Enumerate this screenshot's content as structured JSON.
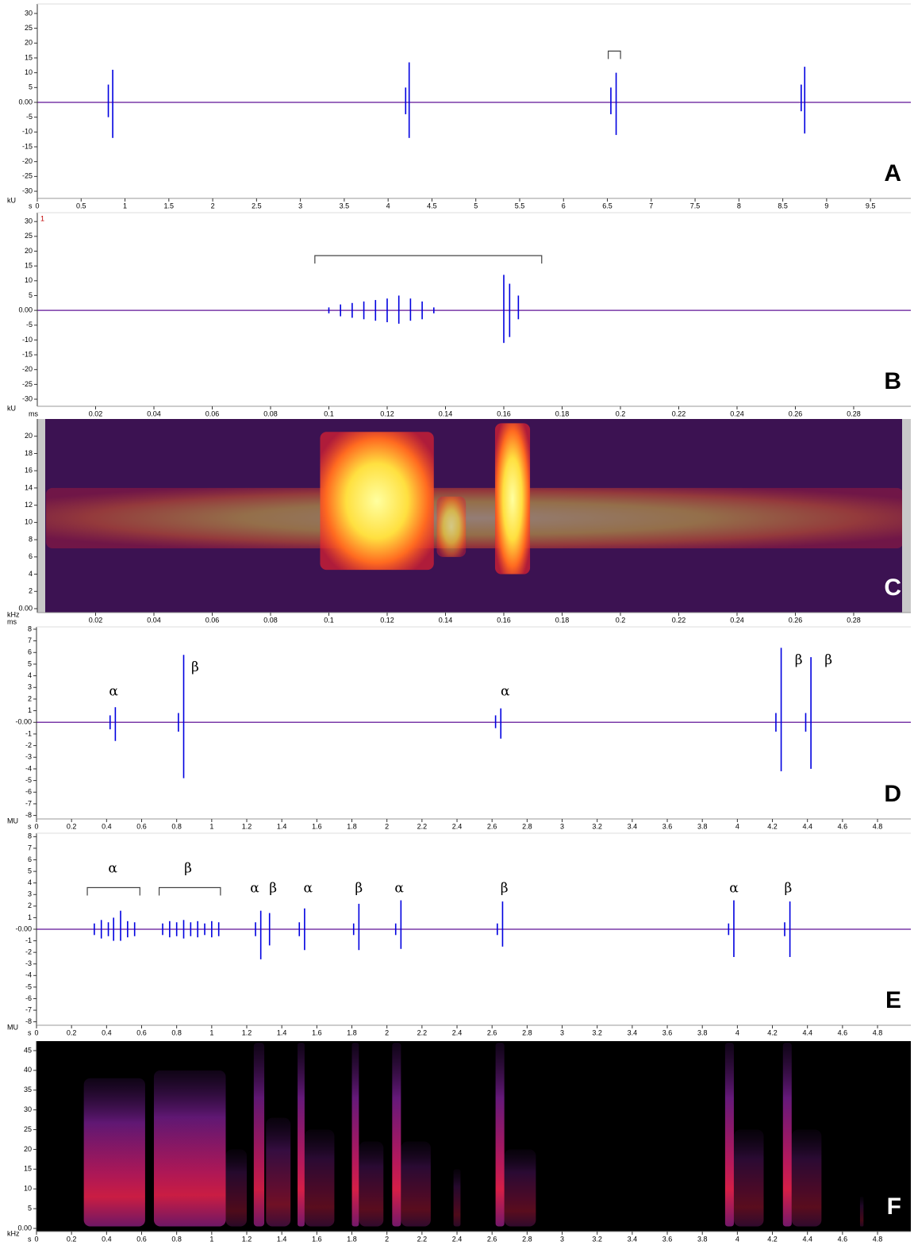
{
  "chart_data": [
    {
      "type": "waveform",
      "label": "A",
      "y_unit": "kU",
      "x_unit": "s",
      "color": "#0000e0",
      "baseline_color": "#7a3aa8",
      "xlim": [
        0,
        9.96
      ],
      "ylim": [
        -32.4,
        33.2
      ],
      "xticks": [
        0,
        0.5,
        1,
        1.5,
        2,
        2.5,
        3,
        3.5,
        4,
        4.5,
        5,
        5.5,
        6,
        6.5,
        7,
        7.5,
        8,
        8.5,
        9,
        9.5
      ],
      "yticks": [
        30,
        25,
        20,
        15,
        10,
        5,
        {
          "value": 0,
          "label": "0.00"
        },
        -5,
        -10,
        -15,
        -20,
        -25,
        -30
      ],
      "x": [
        0.81,
        0.86,
        4.2,
        4.24,
        6.54,
        6.6,
        8.71,
        8.75
      ],
      "max": [
        6,
        11,
        5,
        13.5,
        5,
        10,
        6,
        12
      ],
      "min": [
        -5,
        -12,
        -4,
        -12,
        -4,
        -11,
        -3,
        -10.5
      ],
      "brackets": [
        {
          "x": [
            6.51,
            6.65
          ],
          "y": 17.3
        }
      ]
    },
    {
      "type": "waveform",
      "label": "B",
      "y_unit": "kU",
      "x_unit": "ms",
      "channel_label": "1",
      "color": "#0000e0",
      "baseline_color": "#7a3aa8",
      "xlim": [
        0,
        0.2996
      ],
      "ylim": [
        -32.4,
        33
      ],
      "xticks": [
        0.02,
        0.04,
        0.06,
        0.08,
        0.1,
        0.12,
        0.14,
        0.16,
        0.18,
        0.2,
        0.22,
        0.24,
        0.26,
        0.28
      ],
      "yticks": [
        30,
        25,
        20,
        15,
        10,
        5,
        {
          "value": 0,
          "label": "0.00"
        },
        -5,
        -10,
        -15,
        -20,
        -25,
        -30
      ],
      "x": [
        0.1,
        0.104,
        0.108,
        0.112,
        0.116,
        0.12,
        0.124,
        0.128,
        0.132,
        0.136,
        0.16,
        0.162,
        0.165
      ],
      "max": [
        1,
        2,
        2.5,
        3,
        3.5,
        4,
        5,
        4,
        3,
        1,
        12,
        9,
        5
      ],
      "min": [
        -1,
        -2,
        -2.5,
        -3,
        -3.5,
        -4,
        -4.5,
        -3.5,
        -3,
        -1,
        -11,
        -9,
        -3
      ],
      "brackets": [
        {
          "x": [
            0.0952,
            0.173
          ],
          "y": 18.5
        }
      ]
    },
    {
      "type": "spectrogram",
      "label": "C",
      "y_unit": "kHz",
      "x_unit": "ms",
      "background": "#3c1252",
      "xlim": [
        0,
        0.2996
      ],
      "ylim": [
        -0.46,
        22
      ],
      "xticks": [
        0.02,
        0.04,
        0.06,
        0.08,
        0.1,
        0.12,
        0.14,
        0.16,
        0.18,
        0.2,
        0.22,
        0.24,
        0.26,
        0.28
      ],
      "yticks": [
        {
          "value": 0,
          "label": "0.00"
        },
        2,
        4,
        6,
        8,
        10,
        12,
        14,
        16,
        18,
        20
      ],
      "regions": [
        {
          "x": [
            0.003,
            0.297
          ],
          "y": [
            7,
            14
          ],
          "intensity": 0.45
        },
        {
          "x": [
            0.097,
            0.136
          ],
          "y": [
            4.5,
            20.5
          ],
          "intensity": 1
        },
        {
          "x": [
            0.137,
            0.147
          ],
          "y": [
            6,
            13
          ],
          "intensity": 0.6
        },
        {
          "x": [
            0.157,
            0.169
          ],
          "y": [
            4,
            21.5
          ],
          "intensity": 1
        }
      ]
    },
    {
      "type": "waveform",
      "label": "D",
      "y_unit": "MU",
      "x_unit": "s",
      "color": "#0000e0",
      "baseline_color": "#7a3aa8",
      "xlim": [
        0,
        4.99
      ],
      "ylim": [
        -8.3,
        8.2
      ],
      "xticks": [
        0,
        0.2,
        0.4,
        0.6,
        0.8,
        1,
        1.2,
        1.4,
        1.6,
        1.8,
        2,
        2.2,
        2.4,
        2.6,
        2.8,
        3,
        3.2,
        3.4,
        3.6,
        3.8,
        4,
        4.2,
        4.4,
        4.6,
        4.8
      ],
      "yticks": [
        8,
        7,
        6,
        5,
        4,
        3,
        2,
        1,
        {
          "value": 0,
          "label": "-0.00"
        },
        -1,
        -2,
        -3,
        -4,
        -5,
        -6,
        -7,
        -8
      ],
      "x": [
        0.42,
        0.45,
        0.81,
        0.84,
        2.62,
        2.65,
        4.22,
        4.25,
        4.39,
        4.42
      ],
      "max": [
        0.6,
        1.3,
        0.8,
        5.8,
        0.6,
        1.2,
        0.8,
        6.4,
        0.8,
        5.6
      ],
      "min": [
        -0.6,
        -1.6,
        -0.8,
        -4.8,
        -0.5,
        -1.4,
        -0.8,
        -4.2,
        -0.8,
        -4
      ],
      "annotations": [
        {
          "text": "α",
          "x": 0.44,
          "y": 2.6
        },
        {
          "text": "β",
          "x": 0.905,
          "y": 4.7
        },
        {
          "text": "α",
          "x": 2.675,
          "y": 2.6
        },
        {
          "text": "β",
          "x": 4.35,
          "y": 5.3
        },
        {
          "text": "β",
          "x": 4.52,
          "y": 5.3
        }
      ]
    },
    {
      "type": "waveform",
      "label": "E",
      "y_unit": "MU",
      "x_unit": "s",
      "color": "#0000e0",
      "baseline_color": "#7a3aa8",
      "xlim": [
        0,
        4.99
      ],
      "ylim": [
        -8.3,
        8.3
      ],
      "xticks": [
        0,
        0.2,
        0.4,
        0.6,
        0.8,
        1,
        1.2,
        1.4,
        1.6,
        1.8,
        2,
        2.2,
        2.4,
        2.6,
        2.8,
        3,
        3.2,
        3.4,
        3.6,
        3.8,
        4,
        4.2,
        4.4,
        4.6,
        4.8
      ],
      "yticks": [
        8,
        7,
        6,
        5,
        4,
        3,
        2,
        1,
        {
          "value": 0,
          "label": "-0.00"
        },
        -1,
        -2,
        -3,
        -4,
        -5,
        -6,
        -7,
        -8
      ],
      "x": [
        0.33,
        0.37,
        0.41,
        0.44,
        0.48,
        0.52,
        0.56,
        0.72,
        0.76,
        0.8,
        0.84,
        0.88,
        0.92,
        0.96,
        1.0,
        1.04,
        1.25,
        1.28,
        1.33,
        1.5,
        1.53,
        1.81,
        1.84,
        2.05,
        2.08,
        2.63,
        2.66,
        3.95,
        3.98,
        4.27,
        4.3
      ],
      "max": [
        0.5,
        0.8,
        0.6,
        1.0,
        1.6,
        0.7,
        0.6,
        0.5,
        0.7,
        0.6,
        0.8,
        0.6,
        0.7,
        0.5,
        0.7,
        0.6,
        0.6,
        1.6,
        1.4,
        0.6,
        1.8,
        0.5,
        2.2,
        0.5,
        2.5,
        0.5,
        2.4,
        0.5,
        2.5,
        0.6,
        2.4
      ],
      "min": [
        -0.5,
        -0.8,
        -0.6,
        -1.0,
        -1.0,
        -0.7,
        -0.6,
        -0.5,
        -0.7,
        -0.6,
        -0.8,
        -0.6,
        -0.7,
        -0.5,
        -0.7,
        -0.6,
        -0.6,
        -2.6,
        -1.4,
        -0.6,
        -1.8,
        -0.5,
        -1.8,
        -0.5,
        -1.7,
        -0.5,
        -1.5,
        -0.5,
        -2.4,
        -0.6,
        -2.4
      ],
      "annotations": [
        {
          "text": "α",
          "x": 0.435,
          "y": 5.2
        },
        {
          "text": "β",
          "x": 0.865,
          "y": 5.2
        },
        {
          "text": "α",
          "x": 1.245,
          "y": 3.5
        },
        {
          "text": "β",
          "x": 1.35,
          "y": 3.5
        },
        {
          "text": "α",
          "x": 1.55,
          "y": 3.5
        },
        {
          "text": "β",
          "x": 1.84,
          "y": 3.5
        },
        {
          "text": "α",
          "x": 2.07,
          "y": 3.5
        },
        {
          "text": "β",
          "x": 2.67,
          "y": 3.5
        },
        {
          "text": "α",
          "x": 3.98,
          "y": 3.5
        },
        {
          "text": "β",
          "x": 4.29,
          "y": 3.5
        }
      ],
      "brackets": [
        {
          "x": [
            0.29,
            0.59
          ],
          "y": 3.6
        },
        {
          "x": [
            0.7,
            1.05
          ],
          "y": 3.6
        }
      ]
    },
    {
      "type": "spectrogram",
      "label": "F",
      "y_unit": "kHz",
      "x_unit": "s",
      "background": "#000000",
      "xlim": [
        0,
        4.99
      ],
      "ylim": [
        -0.8,
        47.4
      ],
      "xticks": [
        0,
        0.2,
        0.4,
        0.6,
        0.8,
        1,
        1.2,
        1.4,
        1.6,
        1.8,
        2,
        2.2,
        2.4,
        2.6,
        2.8,
        3,
        3.2,
        3.4,
        3.6,
        3.8,
        4,
        4.2,
        4.4,
        4.6,
        4.8
      ],
      "yticks": [
        {
          "value": 0,
          "label": "0.00"
        },
        5,
        10,
        15,
        20,
        25,
        30,
        35,
        40,
        45
      ],
      "regions": [
        {
          "x": [
            0.27,
            0.62
          ],
          "y": [
            0.5,
            38
          ],
          "intensity": 0.9
        },
        {
          "x": [
            0.67,
            1.08
          ],
          "y": [
            0.5,
            40
          ],
          "intensity": 0.9
        },
        {
          "x": [
            1.08,
            1.2
          ],
          "y": [
            0.5,
            20
          ],
          "intensity": 0.35
        },
        {
          "x": [
            1.24,
            1.3
          ],
          "y": [
            0.5,
            47
          ],
          "intensity": 0.9
        },
        {
          "x": [
            1.31,
            1.45
          ],
          "y": [
            0.5,
            28
          ],
          "intensity": 0.5
        },
        {
          "x": [
            1.49,
            1.53
          ],
          "y": [
            0.5,
            47
          ],
          "intensity": 0.95
        },
        {
          "x": [
            1.53,
            1.7
          ],
          "y": [
            0.5,
            25
          ],
          "intensity": 0.4
        },
        {
          "x": [
            1.8,
            1.84
          ],
          "y": [
            0.5,
            47
          ],
          "intensity": 0.95
        },
        {
          "x": [
            1.84,
            1.98
          ],
          "y": [
            0.5,
            22
          ],
          "intensity": 0.4
        },
        {
          "x": [
            2.03,
            2.08
          ],
          "y": [
            0.5,
            47
          ],
          "intensity": 0.95
        },
        {
          "x": [
            2.08,
            2.25
          ],
          "y": [
            0.5,
            22
          ],
          "intensity": 0.4
        },
        {
          "x": [
            2.38,
            2.42
          ],
          "y": [
            0.5,
            15
          ],
          "intensity": 0.35
        },
        {
          "x": [
            2.62,
            2.67
          ],
          "y": [
            0.5,
            47
          ],
          "intensity": 0.95
        },
        {
          "x": [
            2.67,
            2.85
          ],
          "y": [
            0.5,
            20
          ],
          "intensity": 0.4
        },
        {
          "x": [
            3.93,
            3.98
          ],
          "y": [
            0.5,
            47
          ],
          "intensity": 0.95
        },
        {
          "x": [
            3.98,
            4.15
          ],
          "y": [
            0.5,
            25
          ],
          "intensity": 0.4
        },
        {
          "x": [
            4.26,
            4.31
          ],
          "y": [
            0.5,
            47
          ],
          "intensity": 0.95
        },
        {
          "x": [
            4.31,
            4.48
          ],
          "y": [
            0.5,
            25
          ],
          "intensity": 0.4
        },
        {
          "x": [
            4.7,
            4.72
          ],
          "y": [
            0.5,
            8
          ],
          "intensity": 0.3
        }
      ]
    }
  ]
}
